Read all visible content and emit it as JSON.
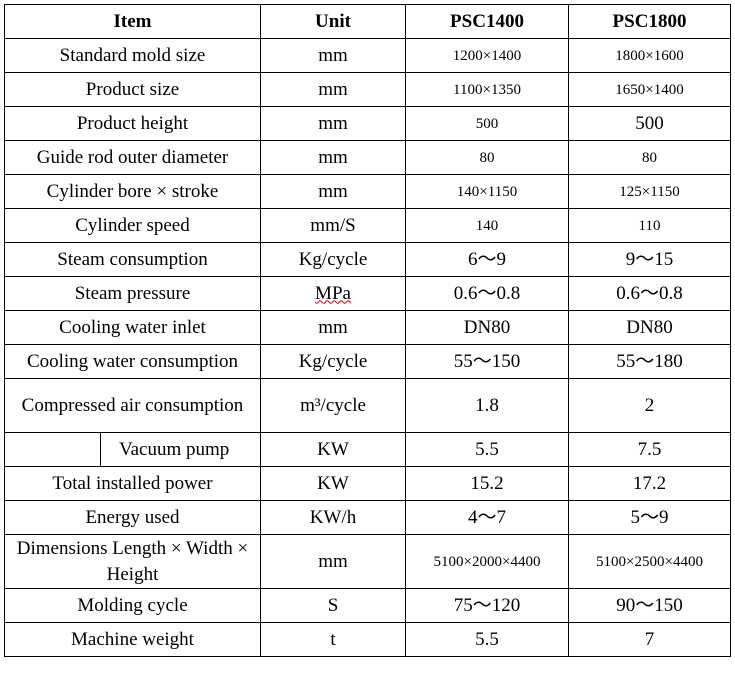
{
  "table": {
    "header": [
      "Item",
      "Unit",
      "PSC1400",
      "PSC1800"
    ],
    "rows": [
      [
        "Standard mold size",
        "mm",
        "1200×1400",
        "1800×1600"
      ],
      [
        "Product size",
        "mm",
        "1100×1350",
        "1650×1400"
      ],
      [
        "Product height",
        "mm",
        "500",
        "500"
      ],
      [
        "Guide rod outer diameter",
        "mm",
        "80",
        "80"
      ],
      [
        "Cylinder bore × stroke",
        "mm",
        "140×1150",
        "125×1150"
      ],
      [
        "Cylinder speed",
        "mm/S",
        "140",
        "110"
      ],
      [
        "Steam consumption",
        "Kg/cycle",
        "6～9",
        "9～15"
      ],
      [
        "Steam pressure",
        "MPa",
        "0.6～0.8",
        "0.6～0.8"
      ],
      [
        "Cooling water inlet",
        "mm",
        "DN80",
        "DN80"
      ],
      [
        "Cooling water consumption",
        "Kg/cycle",
        "55～150",
        "55～180"
      ],
      [
        "Compressed air consumption",
        "m³/cycle",
        "1.8",
        "2"
      ],
      [
        "Vacuum pump",
        "KW",
        "5.5",
        "7.5"
      ],
      [
        "Total installed power",
        "KW",
        "15.2",
        "17.2"
      ],
      [
        "Energy used",
        "KW/h",
        "4～7",
        "5～9"
      ],
      [
        "Dimensions Length × Width × Height",
        "mm",
        "5100×2000×4400",
        "5100×2500×4400"
      ],
      [
        "Molding cycle",
        "S",
        "75～120",
        "90～150"
      ],
      [
        "Machine weight",
        "t",
        "5.5",
        "7"
      ]
    ]
  }
}
